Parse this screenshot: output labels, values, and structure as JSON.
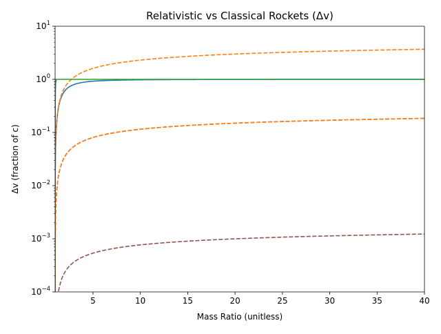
{
  "chart_data": {
    "type": "line",
    "title": "Relativistic vs Classical Rockets (Δv)",
    "xlabel": "Mass Ratio (unitless)",
    "ylabel": "Δv (fraction of c)",
    "xlim": [
      1,
      40
    ],
    "ylim": [
      0.0001,
      10
    ],
    "yscale": "log",
    "grid": false,
    "legend": "none",
    "x_ticks": [
      "5",
      "10",
      "15",
      "20",
      "25",
      "30",
      "35",
      "40"
    ],
    "x_tick_values": [
      5,
      10,
      15,
      20,
      25,
      30,
      35,
      40
    ],
    "y_tick_values": [
      0.0001,
      0.001,
      0.01,
      0.1,
      1,
      10
    ],
    "y_ticks": [
      {
        "base": "10",
        "exp": "−4"
      },
      {
        "base": "10",
        "exp": "−3"
      },
      {
        "base": "10",
        "exp": "−2"
      },
      {
        "base": "10",
        "exp": "−1"
      },
      {
        "base": "10",
        "exp": "0"
      },
      {
        "base": "10",
        "exp": "1"
      }
    ],
    "series": [
      {
        "color": "#1f77b4",
        "style": "solid",
        "kind": "relativistic",
        "exhaust_velocity": 1.0,
        "x": [
          1.5,
          2,
          3,
          5,
          10,
          20,
          40
        ],
        "y": [
          0.385,
          0.6,
          0.8,
          0.923,
          0.98,
          0.995,
          0.9988
        ]
      },
      {
        "color": "#ff7f0e",
        "style": "dashed",
        "kind": "classical",
        "exhaust_velocity": 1.0,
        "x": [
          1.5,
          2,
          3,
          5,
          10,
          20,
          40
        ],
        "y": [
          0.405,
          0.693,
          1.099,
          1.609,
          2.303,
          2.996,
          3.689
        ]
      },
      {
        "color": "#2ca02c",
        "style": "solid",
        "kind": "relativistic",
        "exhaust_velocity": 0.05,
        "x": [
          1.5,
          2,
          3,
          5,
          10,
          20,
          40
        ],
        "y": [
          0.0203,
          0.0346,
          0.0549,
          0.0804,
          0.115,
          0.149,
          0.183
        ]
      },
      {
        "color": "#d62728",
        "style": "dashed",
        "kind": "classical",
        "exhaust_velocity": 0.05,
        "x": [
          1.5,
          2,
          3,
          5,
          10,
          20,
          40
        ],
        "y": [
          0.0203,
          0.0347,
          0.0549,
          0.0805,
          0.115,
          0.15,
          0.184
        ]
      },
      {
        "color": "#ff7f0e",
        "style": "dashed",
        "kind": "classical",
        "exhaust_velocity": 0.05,
        "x": [
          1.5,
          2,
          3,
          5,
          10,
          20,
          40
        ],
        "y": [
          0.0203,
          0.0347,
          0.0549,
          0.0805,
          0.115,
          0.15,
          0.184
        ]
      },
      {
        "color": "#9467bd",
        "style": "solid",
        "kind": "relativistic",
        "exhaust_velocity": 0.000333,
        "x": [
          1.5,
          2,
          3,
          5,
          10,
          20,
          40
        ],
        "y": [
          0.000135,
          0.000231,
          0.000366,
          0.000536,
          0.000768,
          0.000999,
          0.00123
        ]
      },
      {
        "color": "#8c564b",
        "style": "dashed",
        "kind": "classical",
        "exhaust_velocity": 0.000333,
        "x": [
          1.5,
          2,
          3,
          5,
          10,
          20,
          40
        ],
        "y": [
          0.000135,
          0.000231,
          0.000366,
          0.000536,
          0.000768,
          0.000999,
          0.00123
        ]
      }
    ]
  }
}
